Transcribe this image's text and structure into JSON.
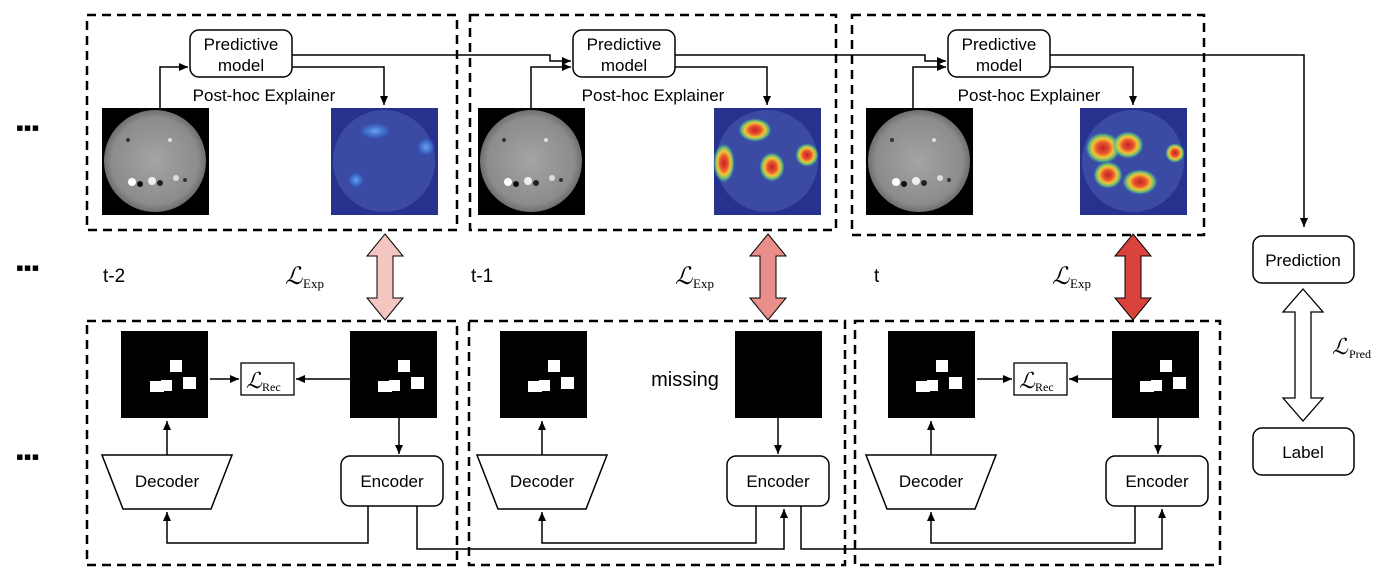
{
  "labels": {
    "predictive_model_line1": "Predictive",
    "predictive_model_line2": "model",
    "post_hoc_explainer": "Post-hoc Explainer",
    "decoder": "Decoder",
    "encoder": "Encoder",
    "missing": "missing",
    "prediction": "Prediction",
    "label": "Label",
    "ellipsis": "▪▪▪"
  },
  "timesteps": [
    "t-2",
    "t-1",
    "t"
  ],
  "losses": {
    "script_L": "ℒ",
    "exp_sub": "Exp",
    "rec_sub": "Rec",
    "pred_sub": "Pred"
  },
  "colors": {
    "arrow_t2": "#f4c6c2",
    "arrow_t1": "#e98e8a",
    "arrow_t": "#d9433b",
    "mask_bg": "#000000",
    "sun_bg": "#000000",
    "sun_disk": "#8f8f8f",
    "heatmap_bg": "#27328f"
  },
  "icons": [
    "sun-magnetogram-image",
    "saliency-heatmap-image",
    "mask-image"
  ]
}
